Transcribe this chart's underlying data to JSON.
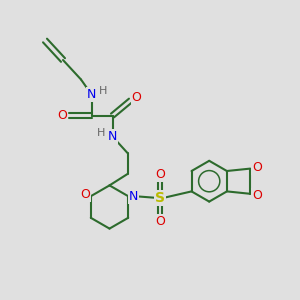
{
  "background_color": "#e0e0e0",
  "bond_color": "#2d6b2d",
  "N_color": "#0000ee",
  "O_color": "#dd0000",
  "S_color": "#bbbb00",
  "H_color": "#666666",
  "lw": 1.5,
  "figsize": [
    3.0,
    3.0
  ],
  "dpi": 100,
  "xlim": [
    0,
    10
  ],
  "ylim": [
    0,
    10
  ]
}
